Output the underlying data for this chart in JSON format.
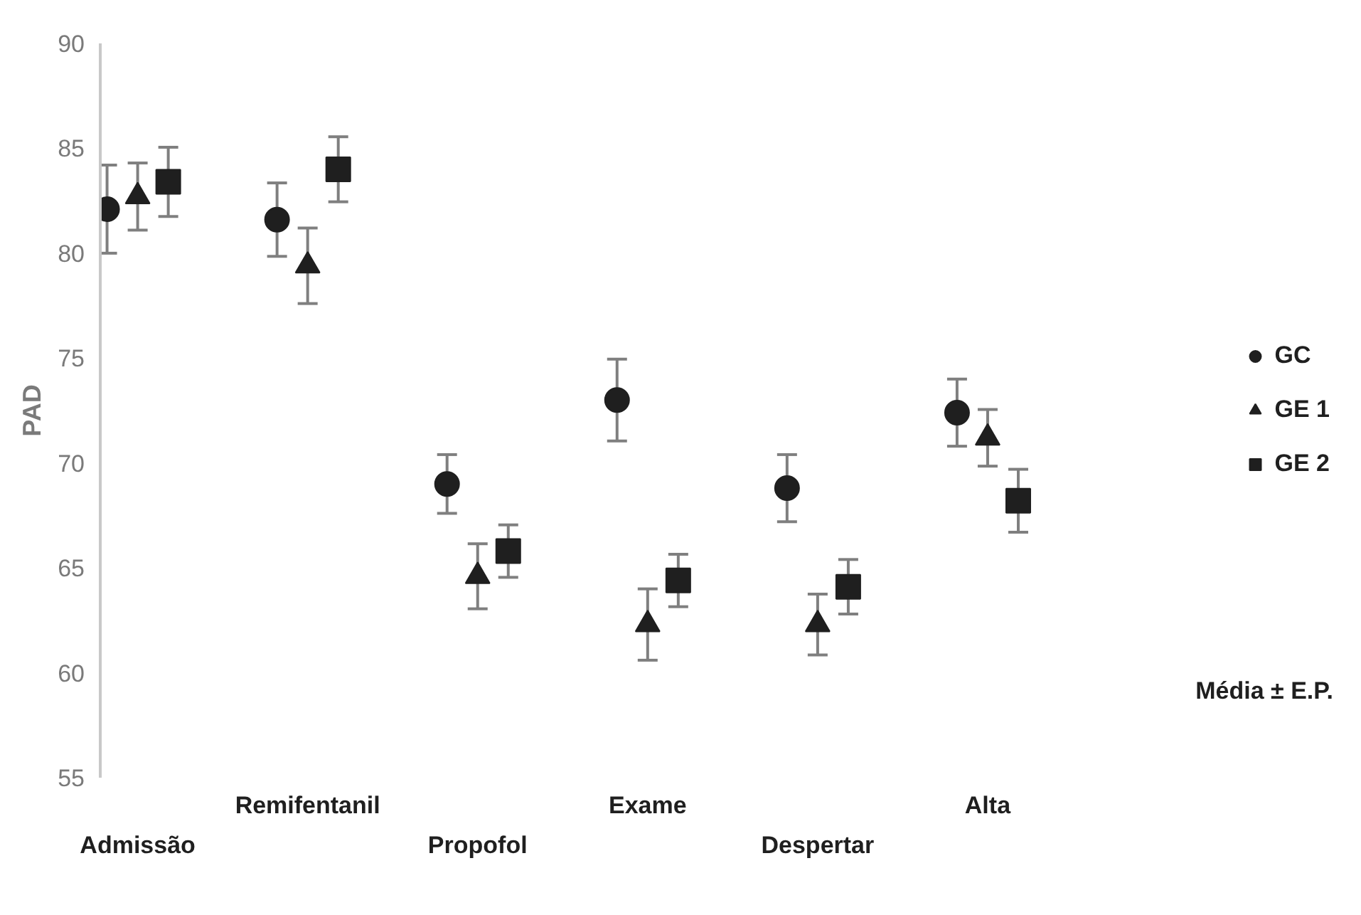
{
  "chart_data": {
    "type": "scatter",
    "ylabel": "PAD",
    "categories": [
      "Admissão",
      "Remifentanil",
      "Propofol",
      "Exame",
      "Despertar",
      "Alta"
    ],
    "series": [
      {
        "name": "GC",
        "color": "#1f1f1f",
        "marker": "circle",
        "x": [
          "Admissão",
          "Remifentanil",
          "Propofol",
          "Exame",
          "Despertar",
          "Alta"
        ],
        "values": [
          82.1,
          81.6,
          69.0,
          73.0,
          68.8,
          72.4
        ],
        "errors": [
          2.1,
          1.75,
          1.4,
          1.95,
          1.6,
          1.6
        ]
      },
      {
        "name": "GE 1",
        "color": "#1f1f1f",
        "marker": "triangle",
        "x": [
          "Admissão",
          "Remifentanil",
          "Propofol",
          "Exame",
          "Despertar",
          "Alta"
        ],
        "values": [
          82.7,
          79.4,
          64.6,
          62.3,
          62.3,
          71.2
        ],
        "errors": [
          1.6,
          1.8,
          1.55,
          1.7,
          1.45,
          1.35
        ]
      },
      {
        "name": "GE 2",
        "color": "#1f1f1f",
        "marker": "square",
        "x": [
          "Admissão",
          "Remifentanil",
          "Propofol",
          "Exame",
          "Despertar",
          "Alta"
        ],
        "values": [
          83.4,
          84.0,
          65.8,
          64.4,
          64.1,
          68.2
        ],
        "errors": [
          1.65,
          1.55,
          1.25,
          1.25,
          1.3,
          1.5
        ]
      }
    ],
    "ylim": [
      55,
      90
    ],
    "yticks": [
      55,
      60,
      65,
      70,
      75,
      80,
      85,
      90
    ],
    "grid": false,
    "legend": "right",
    "annotations": [
      "Média ± E.P."
    ]
  }
}
